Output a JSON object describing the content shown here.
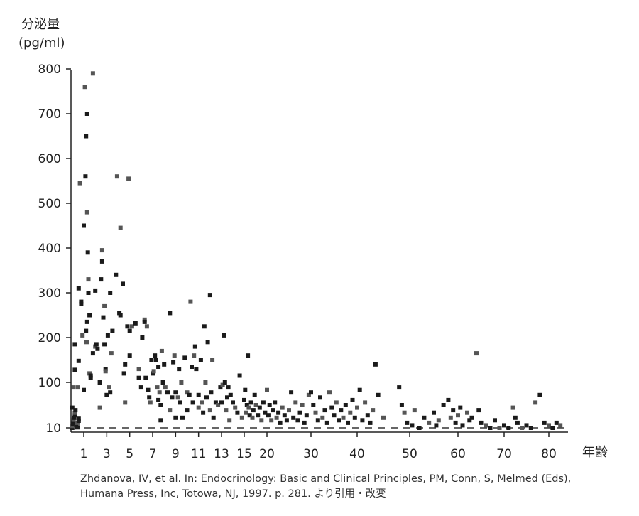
{
  "chart_data": {
    "type": "scatter",
    "title": "",
    "ylabel_line1": "分泌量",
    "ylabel_line2": "(pg/ml)",
    "xlabel": "年齢",
    "y_ticks": [
      10,
      100,
      200,
      300,
      400,
      500,
      600,
      700,
      800
    ],
    "y_range": [
      10,
      800
    ],
    "x_ticks": [
      "1",
      "3",
      "5",
      "7",
      "9",
      "11",
      "13",
      "15",
      "20",
      "30",
      "40",
      "50",
      "60",
      "70",
      "80"
    ],
    "reference_line": {
      "y": 10,
      "style": "dashed"
    },
    "grid": false,
    "legend": "none",
    "colors": {
      "dark": "#1a1a1a",
      "gray": "#555555",
      "axis": "#222222"
    },
    "points": [
      [
        0.1,
        10
      ],
      [
        0.1,
        14
      ],
      [
        0.15,
        18
      ],
      [
        0.2,
        22
      ],
      [
        0.2,
        26
      ],
      [
        0.25,
        30
      ],
      [
        0.3,
        35
      ],
      [
        0.3,
        40
      ],
      [
        0.35,
        45
      ],
      [
        0.1,
        50
      ],
      [
        0.4,
        12
      ],
      [
        0.4,
        16
      ],
      [
        0.5,
        11
      ],
      [
        0.5,
        20
      ],
      [
        0.6,
        24
      ],
      [
        0.6,
        28
      ],
      [
        0.2,
        90
      ],
      [
        0.3,
        128
      ],
      [
        0.3,
        185
      ],
      [
        0.55,
        90
      ],
      [
        0.6,
        148
      ],
      [
        0.6,
        310
      ],
      [
        0.7,
        545
      ],
      [
        0.8,
        280
      ],
      [
        0.8,
        275
      ],
      [
        0.9,
        205
      ],
      [
        1.0,
        85
      ],
      [
        1.0,
        450
      ],
      [
        1.1,
        760
      ],
      [
        1.15,
        560
      ],
      [
        1.2,
        650
      ],
      [
        1.3,
        480
      ],
      [
        1.3,
        700
      ],
      [
        1.35,
        390
      ],
      [
        1.4,
        330
      ],
      [
        1.4,
        300
      ],
      [
        1.5,
        250
      ],
      [
        1.5,
        120
      ],
      [
        1.2,
        215
      ],
      [
        1.3,
        235
      ],
      [
        1.25,
        190
      ],
      [
        1.6,
        110
      ],
      [
        1.6,
        115
      ],
      [
        1.8,
        790
      ],
      [
        1.8,
        165
      ],
      [
        2.0,
        305
      ],
      [
        2.0,
        180
      ],
      [
        2.1,
        185
      ],
      [
        2.2,
        175
      ],
      [
        2.4,
        50
      ],
      [
        2.4,
        100
      ],
      [
        2.5,
        330
      ],
      [
        2.6,
        395
      ],
      [
        2.6,
        370
      ],
      [
        2.7,
        245
      ],
      [
        2.8,
        270
      ],
      [
        2.8,
        185
      ],
      [
        2.9,
        130
      ],
      [
        2.9,
        125
      ],
      [
        3.0,
        75
      ],
      [
        3.1,
        205
      ],
      [
        3.2,
        90
      ],
      [
        3.3,
        300
      ],
      [
        3.3,
        80
      ],
      [
        3.4,
        165
      ],
      [
        3.5,
        215
      ],
      [
        3.8,
        340
      ],
      [
        3.9,
        560
      ],
      [
        4.1,
        255
      ],
      [
        4.2,
        250
      ],
      [
        4.2,
        445
      ],
      [
        4.4,
        320
      ],
      [
        4.5,
        120
      ],
      [
        4.6,
        60
      ],
      [
        4.6,
        140
      ],
      [
        4.8,
        225
      ],
      [
        4.9,
        555
      ],
      [
        5.0,
        215
      ],
      [
        5.0,
        160
      ],
      [
        5.2,
        225
      ],
      [
        5.5,
        232
      ],
      [
        5.8,
        110
      ],
      [
        5.8,
        130
      ],
      [
        6.0,
        90
      ],
      [
        6.1,
        200
      ],
      [
        6.3,
        240
      ],
      [
        6.3,
        235
      ],
      [
        6.4,
        110
      ],
      [
        6.5,
        225
      ],
      [
        6.6,
        85
      ],
      [
        6.7,
        70
      ],
      [
        6.8,
        60
      ],
      [
        6.9,
        150
      ],
      [
        7.0,
        120
      ],
      [
        7.1,
        125
      ],
      [
        7.2,
        160
      ],
      [
        7.3,
        150
      ],
      [
        7.4,
        90
      ],
      [
        7.5,
        65
      ],
      [
        7.5,
        135
      ],
      [
        7.6,
        80
      ],
      [
        7.7,
        55
      ],
      [
        7.7,
        25
      ],
      [
        7.8,
        170
      ],
      [
        7.9,
        100
      ],
      [
        8.0,
        140
      ],
      [
        8.1,
        90
      ],
      [
        8.3,
        80
      ],
      [
        8.5,
        255
      ],
      [
        8.5,
        45
      ],
      [
        8.7,
        70
      ],
      [
        8.8,
        145
      ],
      [
        8.9,
        160
      ],
      [
        9.0,
        30
      ],
      [
        9.0,
        80
      ],
      [
        9.2,
        70
      ],
      [
        9.3,
        130
      ],
      [
        9.4,
        60
      ],
      [
        9.5,
        100
      ],
      [
        9.6,
        30
      ],
      [
        9.8,
        155
      ],
      [
        10.0,
        80
      ],
      [
        10.0,
        45
      ],
      [
        10.2,
        75
      ],
      [
        10.3,
        280
      ],
      [
        10.4,
        135
      ],
      [
        10.5,
        60
      ],
      [
        10.6,
        160
      ],
      [
        10.7,
        180
      ],
      [
        10.8,
        130
      ],
      [
        11.0,
        50
      ],
      [
        11.0,
        75
      ],
      [
        11.2,
        150
      ],
      [
        11.3,
        60
      ],
      [
        11.4,
        40
      ],
      [
        11.5,
        225
      ],
      [
        11.6,
        100
      ],
      [
        11.7,
        70
      ],
      [
        11.8,
        190
      ],
      [
        12.0,
        45
      ],
      [
        12.0,
        295
      ],
      [
        12.1,
        80
      ],
      [
        12.2,
        150
      ],
      [
        12.3,
        30
      ],
      [
        12.5,
        60
      ],
      [
        12.7,
        55
      ],
      [
        12.9,
        90
      ],
      [
        13.0,
        60
      ],
      [
        13.1,
        95
      ],
      [
        13.2,
        205
      ],
      [
        13.3,
        100
      ],
      [
        13.4,
        45
      ],
      [
        13.5,
        70
      ],
      [
        13.6,
        90
      ],
      [
        13.7,
        25
      ],
      [
        13.8,
        75
      ],
      [
        14.0,
        60
      ],
      [
        14.2,
        50
      ],
      [
        14.4,
        40
      ],
      [
        14.6,
        115
      ],
      [
        14.8,
        30
      ],
      [
        15.0,
        65
      ],
      [
        15.2,
        85
      ],
      [
        15.4,
        40
      ],
      [
        15.6,
        55
      ],
      [
        15.8,
        160
      ],
      [
        16.0,
        50
      ],
      [
        16.2,
        35
      ],
      [
        16.5,
        60
      ],
      [
        16.8,
        30
      ],
      [
        17.0,
        45
      ],
      [
        17.3,
        75
      ],
      [
        17.6,
        55
      ],
      [
        18.0,
        35
      ],
      [
        18.4,
        50
      ],
      [
        18.8,
        25
      ],
      [
        19.2,
        60
      ],
      [
        19.6,
        40
      ],
      [
        20.0,
        85
      ],
      [
        20.3,
        35
      ],
      [
        20.6,
        55
      ],
      [
        21.0,
        25
      ],
      [
        21.4,
        45
      ],
      [
        21.8,
        60
      ],
      [
        22.2,
        30
      ],
      [
        22.6,
        40
      ],
      [
        23.0,
        20
      ],
      [
        23.5,
        50
      ],
      [
        24.0,
        35
      ],
      [
        24.5,
        25
      ],
      [
        25.0,
        45
      ],
      [
        25.5,
        80
      ],
      [
        26.0,
        30
      ],
      [
        26.5,
        60
      ],
      [
        27.0,
        25
      ],
      [
        27.5,
        40
      ],
      [
        28.0,
        55
      ],
      [
        28.5,
        20
      ],
      [
        29.0,
        35
      ],
      [
        29.5,
        75
      ],
      [
        30.0,
        80
      ],
      [
        30.5,
        55
      ],
      [
        31.0,
        40
      ],
      [
        31.5,
        25
      ],
      [
        32.0,
        70
      ],
      [
        32.5,
        30
      ],
      [
        33.0,
        45
      ],
      [
        33.5,
        20
      ],
      [
        34.0,
        80
      ],
      [
        34.5,
        50
      ],
      [
        35.0,
        35
      ],
      [
        35.5,
        60
      ],
      [
        36.0,
        25
      ],
      [
        36.5,
        45
      ],
      [
        37.0,
        30
      ],
      [
        37.5,
        55
      ],
      [
        38.0,
        20
      ],
      [
        38.5,
        40
      ],
      [
        39.0,
        65
      ],
      [
        39.5,
        30
      ],
      [
        40.0,
        50
      ],
      [
        40.5,
        85
      ],
      [
        41.0,
        25
      ],
      [
        41.5,
        60
      ],
      [
        42.0,
        35
      ],
      [
        42.5,
        20
      ],
      [
        43.0,
        45
      ],
      [
        43.5,
        140
      ],
      [
        44.0,
        75
      ],
      [
        45.0,
        30
      ],
      [
        48.0,
        90
      ],
      [
        48.5,
        55
      ],
      [
        49.0,
        40
      ],
      [
        49.5,
        20
      ],
      [
        50.5,
        15
      ],
      [
        51.0,
        45
      ],
      [
        52.0,
        10
      ],
      [
        53.0,
        30
      ],
      [
        54.0,
        20
      ],
      [
        55.0,
        40
      ],
      [
        55.5,
        15
      ],
      [
        56.0,
        25
      ],
      [
        57.0,
        55
      ],
      [
        58.0,
        65
      ],
      [
        58.5,
        30
      ],
      [
        59.0,
        45
      ],
      [
        59.5,
        20
      ],
      [
        60.0,
        35
      ],
      [
        60.5,
        50
      ],
      [
        61.0,
        15
      ],
      [
        62.0,
        40
      ],
      [
        62.5,
        25
      ],
      [
        63.0,
        30
      ],
      [
        64.0,
        165
      ],
      [
        64.5,
        45
      ],
      [
        65.0,
        20
      ],
      [
        66.0,
        15
      ],
      [
        67.0,
        10
      ],
      [
        68.0,
        25
      ],
      [
        69.0,
        10
      ],
      [
        70.0,
        15
      ],
      [
        71.0,
        10
      ],
      [
        72.0,
        50
      ],
      [
        72.5,
        30
      ],
      [
        73.0,
        20
      ],
      [
        74.0,
        10
      ],
      [
        75.0,
        15
      ],
      [
        76.0,
        10
      ],
      [
        77.0,
        60
      ],
      [
        78.0,
        75
      ],
      [
        79.0,
        20
      ],
      [
        80.0,
        15
      ],
      [
        81.0,
        10
      ],
      [
        82.0,
        20
      ],
      [
        83.0,
        15
      ]
    ]
  },
  "citation": {
    "line1": "Zhdanova, IV, et al. In: Endocrinology: Basic and Clinical Principles, PM, Conn, S, Melmed (Eds),",
    "line2": "Humana Press, Inc, Totowa, NJ, 1997. p. 281. より引用・改変"
  }
}
